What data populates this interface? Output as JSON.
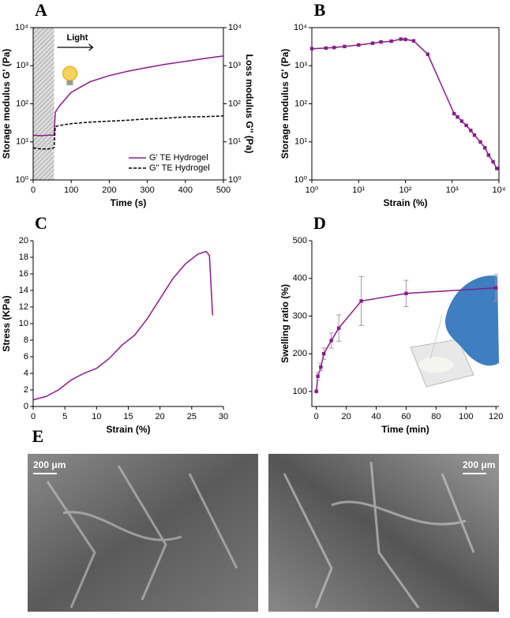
{
  "chart_data": [
    {
      "type": "line",
      "panel": "A",
      "xlabel": "Time (s)",
      "ylabel": "Storage modulus G' (Pa)",
      "y2label": "Loss modulus G'' (Pa)",
      "frame": true,
      "ylog": true,
      "y2log": true,
      "xlim": [
        0,
        500
      ],
      "xticks": [
        0,
        100,
        200,
        300,
        400,
        500
      ],
      "ylim": [
        1,
        10000
      ],
      "yticks": [
        {
          "value": 1,
          "label": "10⁰"
        },
        {
          "value": 10,
          "label": "10¹"
        },
        {
          "value": 100,
          "label": "10²"
        },
        {
          "value": 1000,
          "label": "10³"
        },
        {
          "value": 10000,
          "label": "10⁴"
        }
      ],
      "y2lim": [
        1,
        10000
      ],
      "y2ticks": [
        {
          "value": 1,
          "label": "10⁰"
        },
        {
          "value": 10,
          "label": "10¹"
        },
        {
          "value": 100,
          "label": "10²"
        },
        {
          "value": 1000,
          "label": "10³"
        },
        {
          "value": 10000,
          "label": "10⁴"
        }
      ],
      "shaded_xrange": [
        0,
        55
      ],
      "annotation": "Light",
      "legend": "lower right",
      "series": [
        {
          "name": "G' TE Hydrogel",
          "color": "#8b1a8b",
          "x": [
            0,
            20,
            40,
            55,
            58,
            70,
            100,
            150,
            200,
            250,
            300,
            350,
            400,
            450,
            500
          ],
          "values": [
            15,
            14.5,
            15,
            15,
            60,
            90,
            200,
            380,
            550,
            720,
            900,
            1100,
            1300,
            1550,
            1800
          ]
        },
        {
          "name": "G'' TE Hydrogel",
          "color": "#000000",
          "dash": true,
          "axis": "y2",
          "x": [
            0,
            20,
            40,
            55,
            58,
            70,
            100,
            150,
            200,
            250,
            300,
            350,
            400,
            450,
            500
          ],
          "values": [
            7,
            6.5,
            6.5,
            7,
            25,
            27,
            30,
            33,
            35,
            37,
            40,
            42,
            45,
            46,
            48
          ]
        }
      ]
    },
    {
      "type": "line",
      "panel": "B",
      "xlabel": "Strain (%)",
      "ylabel": "Storage modulus G' (Pa)",
      "frame": true,
      "xlog": true,
      "ylog": true,
      "xlim": [
        1,
        10000
      ],
      "xticks": [
        {
          "value": 1,
          "label": "10⁰"
        },
        {
          "value": 10,
          "label": "10¹"
        },
        {
          "value": 100,
          "label": "10²"
        },
        {
          "value": 1000,
          "label": "10³"
        },
        {
          "value": 10000,
          "label": "10⁴"
        }
      ],
      "ylim": [
        1,
        10000
      ],
      "yticks": [
        {
          "value": 1,
          "label": "10⁰"
        },
        {
          "value": 10,
          "label": "10¹"
        },
        {
          "value": 100,
          "label": "10²"
        },
        {
          "value": 1000,
          "label": "10³"
        },
        {
          "value": 10000,
          "label": "10⁴"
        }
      ],
      "series": [
        {
          "name": null,
          "color": "#8b1a8b",
          "marker": "square",
          "x": [
            1,
            2,
            3,
            5,
            10,
            20,
            30,
            50,
            80,
            100,
            150,
            300,
            1100,
            1300,
            1600,
            2000,
            2500,
            3000,
            4000,
            5000,
            6000,
            7500,
            9000
          ],
          "values": [
            2800,
            2900,
            3000,
            3200,
            3500,
            3900,
            4200,
            4400,
            5000,
            4900,
            4500,
            2000,
            55,
            45,
            35,
            27,
            20,
            15,
            10,
            7,
            4.5,
            3,
            2
          ]
        }
      ]
    },
    {
      "type": "line",
      "panel": "C",
      "xlabel": "Strain (%)",
      "ylabel": "Stress (KPa)",
      "xlim": [
        0,
        30
      ],
      "xticks": [
        0,
        5,
        10,
        15,
        20,
        25,
        30
      ],
      "ylim": [
        0,
        20
      ],
      "yticks": [
        0,
        2,
        4,
        6,
        8,
        10,
        12,
        14,
        16,
        18,
        20
      ],
      "series": [
        {
          "name": null,
          "color": "#8b1a8b",
          "x": [
            0,
            2,
            4,
            6,
            8,
            10,
            12,
            14,
            16,
            18,
            20,
            22,
            24,
            26,
            27.3,
            27.8,
            28.3
          ],
          "values": [
            0.8,
            1.2,
            2,
            3.2,
            4,
            4.6,
            5.8,
            7.4,
            8.6,
            10.6,
            13,
            15.4,
            17.2,
            18.4,
            18.7,
            18.2,
            11
          ]
        }
      ]
    },
    {
      "type": "line",
      "panel": "D",
      "xlabel": "Time (min)",
      "ylabel": "Swelling ratio (%)",
      "xlim": [
        -3,
        122
      ],
      "xticks": [
        0,
        20,
        40,
        60,
        80,
        100,
        120
      ],
      "ylim": [
        60,
        500
      ],
      "yticks": [
        100,
        200,
        300,
        400,
        500
      ],
      "series": [
        {
          "name": null,
          "color": "#8b1a8b",
          "marker": "square",
          "x": [
            0,
            1,
            3,
            5,
            10,
            15,
            30,
            60,
            120
          ],
          "values": [
            100,
            140,
            165,
            200,
            235,
            268,
            340,
            360,
            375
          ],
          "errors": [
            0,
            10,
            10,
            15,
            20,
            35,
            65,
            35,
            35
          ]
        }
      ]
    }
  ],
  "panel_e": {
    "label": "E",
    "scale_bars": [
      "200 μm",
      "200 μm"
    ]
  }
}
